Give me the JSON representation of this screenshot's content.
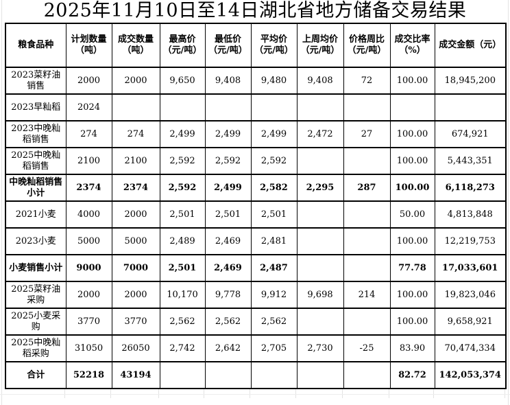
{
  "title": "2025年11月10日至14日湖北省地方储备交易结果",
  "colors": {
    "text": "#000000",
    "table_border": "#000000",
    "background": "#ffffff",
    "outer_gridline": "#e3e3e3"
  },
  "table": {
    "columns": [
      {
        "title": "粮食品种",
        "unit": ""
      },
      {
        "title": "计划数量",
        "unit": "（吨）"
      },
      {
        "title": "成交数量",
        "unit": "（吨）"
      },
      {
        "title": "最高价",
        "unit": "（元/吨）"
      },
      {
        "title": "最低价",
        "unit": "（元/吨）"
      },
      {
        "title": "平均价",
        "unit": "（元/吨）"
      },
      {
        "title": "上周均价",
        "unit": "（元/吨）"
      },
      {
        "title": "价格周比",
        "unit": "（元/吨）"
      },
      {
        "title": "成交比率",
        "unit": "（%）"
      },
      {
        "title": "成交金额（元）",
        "unit": ""
      }
    ],
    "rows": [
      {
        "label": "2023菜籽油销售",
        "bold": false,
        "values": [
          "2000",
          "2000",
          "9,650",
          "9,408",
          "9,480",
          "9,408",
          "72",
          "100.00",
          "18,945,200"
        ]
      },
      {
        "label": "2023早籼稻",
        "bold": false,
        "values": [
          "2024",
          "",
          "",
          "",
          "",
          "",
          "",
          "",
          ""
        ]
      },
      {
        "label": "2023中晚籼稻销售",
        "bold": false,
        "values": [
          "274",
          "274",
          "2,499",
          "2,499",
          "2,499",
          "2,472",
          "27",
          "100.00",
          "674,921"
        ]
      },
      {
        "label": "2025中晚籼稻销售",
        "bold": false,
        "values": [
          "2100",
          "2100",
          "2,592",
          "2,592",
          "2,592",
          "",
          "",
          "100.00",
          "5,443,351"
        ]
      },
      {
        "label": "中晚籼稻销售小计",
        "bold": true,
        "values": [
          "2374",
          "2374",
          "2,592",
          "2,499",
          "2,582",
          "2,295",
          "287",
          "100.00",
          "6,118,273"
        ]
      },
      {
        "label": "2021小麦",
        "bold": false,
        "values": [
          "4000",
          "2000",
          "2,501",
          "2,501",
          "2,501",
          "",
          "",
          "50.00",
          "4,813,848"
        ]
      },
      {
        "label": "2023小麦",
        "bold": false,
        "values": [
          "5000",
          "5000",
          "2,489",
          "2,469",
          "2,481",
          "",
          "",
          "100.00",
          "12,219,753"
        ]
      },
      {
        "label": "小麦销售小计",
        "bold": true,
        "values": [
          "9000",
          "7000",
          "2,501",
          "2,469",
          "2,487",
          "",
          "",
          "77.78",
          "17,033,601"
        ]
      },
      {
        "label": "2025菜籽油采购",
        "bold": false,
        "values": [
          "2000",
          "2000",
          "10,170",
          "9,778",
          "9,912",
          "9,698",
          "214",
          "100.00",
          "19,823,046"
        ]
      },
      {
        "label": "2025小麦采购",
        "bold": false,
        "values": [
          "3770",
          "3770",
          "2,562",
          "2,562",
          "2,562",
          "",
          "",
          "100.00",
          "9,658,921"
        ]
      },
      {
        "label": "2025中晚籼稻采购",
        "bold": false,
        "values": [
          "31050",
          "26050",
          "2,742",
          "2,642",
          "2,705",
          "2,730",
          "-25",
          "83.90",
          "70,474,334"
        ]
      },
      {
        "label": "合计",
        "bold": true,
        "values": [
          "52218",
          "43194",
          "",
          "",
          "",
          "",
          "",
          "82.72",
          "142,053,374"
        ]
      }
    ]
  }
}
